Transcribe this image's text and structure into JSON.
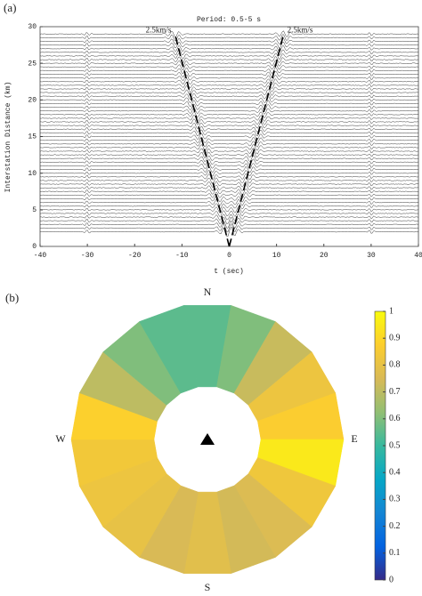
{
  "chart_data": [
    {
      "type": "wiggle",
      "panel_label": "(a)",
      "title": "Period: 0.5-5 s",
      "x_label": "t (sec)",
      "y_label": "Interstation Distance (km)",
      "xlim": [
        -40,
        40
      ],
      "xticks": [
        -40,
        -30,
        -20,
        -10,
        0,
        10,
        20,
        30,
        40
      ],
      "ylim": [
        0,
        30
      ],
      "yticks": [
        0,
        5,
        10,
        15,
        20,
        25,
        30
      ],
      "trace_color": "#333333",
      "trace_distances": [
        2,
        2.5,
        3,
        3.5,
        4,
        4.5,
        5,
        5.5,
        6,
        6.5,
        7,
        7.5,
        8,
        8.5,
        9,
        9.5,
        10,
        10.5,
        11,
        11.5,
        12,
        12.5,
        13,
        13.5,
        14,
        14.5,
        15,
        15.5,
        16,
        16.5,
        17,
        17.5,
        18,
        18.5,
        19,
        19.5,
        20,
        20.5,
        21,
        21.5,
        22,
        22.5,
        23,
        23.5,
        24,
        24.5,
        25,
        25.5,
        26,
        26.5,
        27,
        27.5,
        28,
        28.5,
        29
      ],
      "moveout_lines": [
        {
          "label": "2.5km/s",
          "x": [
            0,
            -11.5
          ],
          "y": [
            0,
            29
          ]
        },
        {
          "label": "2.5km/s",
          "x": [
            0,
            11.5
          ],
          "y": [
            0,
            29
          ]
        }
      ]
    },
    {
      "type": "polar_sector",
      "panel_label": "(b)",
      "directions": [
        "N",
        "E",
        "S",
        "W"
      ],
      "azimuths": [
        0,
        20,
        40,
        60,
        80,
        100,
        120,
        140,
        160,
        180,
        200,
        220,
        240,
        260,
        280,
        300,
        320,
        340
      ],
      "values": [
        0.55,
        0.6,
        0.72,
        0.82,
        0.87,
        0.95,
        0.83,
        0.76,
        0.74,
        0.78,
        0.75,
        0.8,
        0.82,
        0.84,
        0.88,
        0.7,
        0.6,
        0.55
      ],
      "colorbar": {
        "lim": [
          0,
          1
        ],
        "ticks": [
          0,
          0.1,
          0.2,
          0.3,
          0.4,
          0.5,
          0.6,
          0.7,
          0.8,
          0.9,
          1
        ],
        "colors": [
          "#352a87",
          "#0363e1",
          "#1485d4",
          "#06a7c6",
          "#38b99e",
          "#92bf73",
          "#d9ba56",
          "#fcce2e",
          "#f9fb0e"
        ]
      }
    }
  ]
}
